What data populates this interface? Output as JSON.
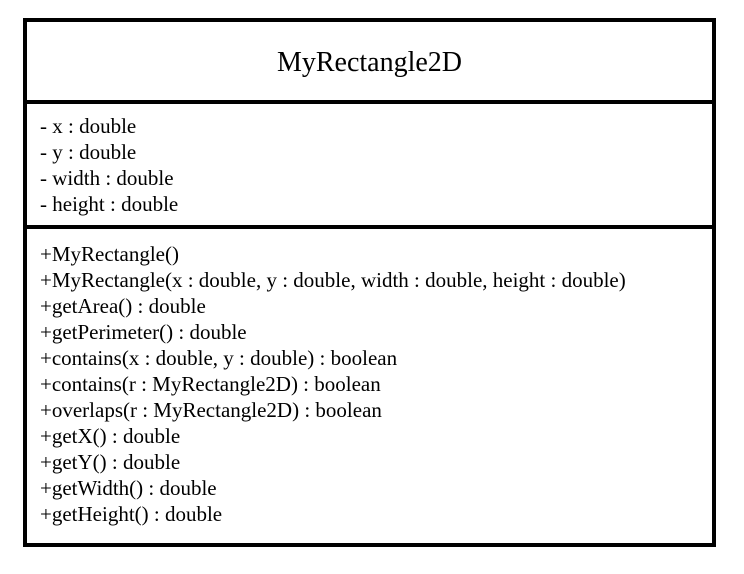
{
  "class_name": "MyRectangle2D",
  "attributes": [
    "- x : double",
    "- y : double",
    "- width : double",
    "- height : double"
  ],
  "operations": [
    "+MyRectangle()",
    "+MyRectangle(x : double, y : double, width : double, height : double)",
    "+getArea() : double",
    "+getPerimeter() : double",
    "+contains(x : double, y : double) : boolean",
    "+contains(r : MyRectangle2D) : boolean",
    "+overlaps(r : MyRectangle2D) : boolean",
    "+getX() : double",
    "+getY() : double",
    "+getWidth() : double",
    "+getHeight() : double"
  ]
}
